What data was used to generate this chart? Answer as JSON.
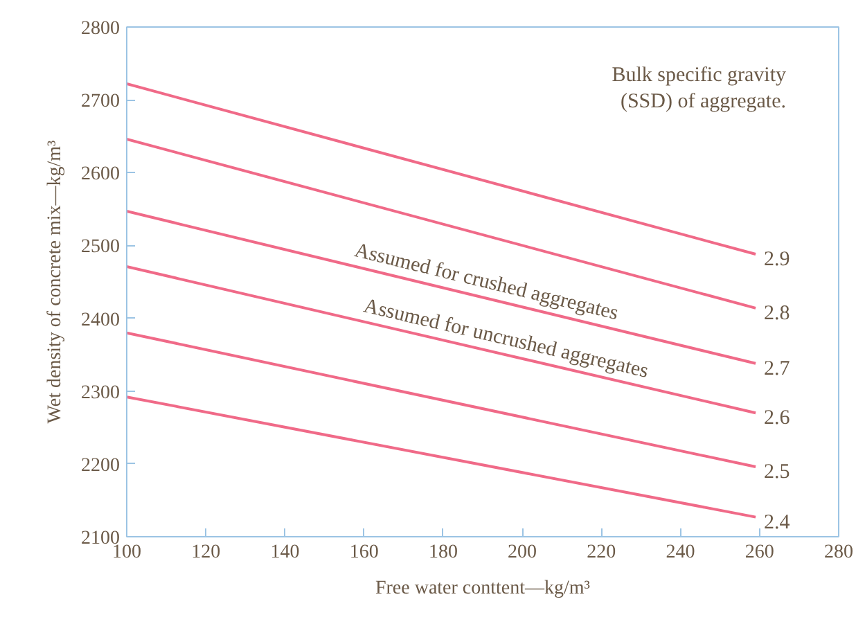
{
  "chart_data": {
    "type": "line",
    "xlabel": "Free water conttent—kg/m³",
    "ylabel": "Wet density of concrete mix—kg/m³",
    "x": [
      100,
      259
    ],
    "series": [
      {
        "name": "2.9",
        "color": "#f06a88",
        "values": [
          2722,
          2488
        ]
      },
      {
        "name": "2.8",
        "color": "#f06a88",
        "values": [
          2646,
          2414
        ]
      },
      {
        "name": "2.7",
        "color": "#f06a88",
        "values": [
          2547,
          2338
        ]
      },
      {
        "name": "2.6",
        "color": "#f06a88",
        "values": [
          2471,
          2270
        ]
      },
      {
        "name": "2.5",
        "color": "#f06a88",
        "values": [
          2380,
          2196
        ]
      },
      {
        "name": "2.4",
        "color": "#f06a88",
        "values": [
          2292,
          2127
        ]
      }
    ],
    "annotations": [
      "Bulk specific gravity\n(SSD) of aggregate.",
      {
        "text": "Assumed for crushed aggregates",
        "x": 190,
        "y": 2429
      },
      {
        "text": "Assumed for uncrushed aggregates",
        "x": 195,
        "y": 2351
      }
    ],
    "xlim": [
      100,
      280
    ],
    "xticks": [
      100,
      120,
      140,
      160,
      180,
      200,
      220,
      240,
      260,
      280
    ],
    "ylim": [
      2100,
      2800
    ],
    "yticks": [
      2100,
      2200,
      2300,
      2400,
      2500,
      2600,
      2700,
      2800
    ],
    "grid": false,
    "legend": false,
    "marker": "none",
    "line_style": "solid"
  }
}
